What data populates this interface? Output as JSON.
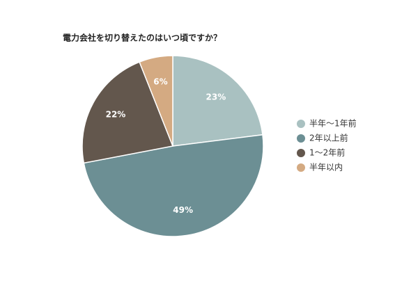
{
  "chart_data": {
    "type": "pie",
    "title": "電力会社を切り替えたのはいつ頃ですか？",
    "categories": [
      "半年〜1年前",
      "2年以上前",
      "1〜2年前",
      "半年以内"
    ],
    "values": [
      23,
      49,
      22,
      6
    ],
    "value_labels": [
      "23%",
      "49%",
      "22%",
      "6%"
    ],
    "colors": [
      "#a9c1c1",
      "#6c8f94",
      "#63574d",
      "#d4aa82"
    ],
    "legend": "right"
  }
}
